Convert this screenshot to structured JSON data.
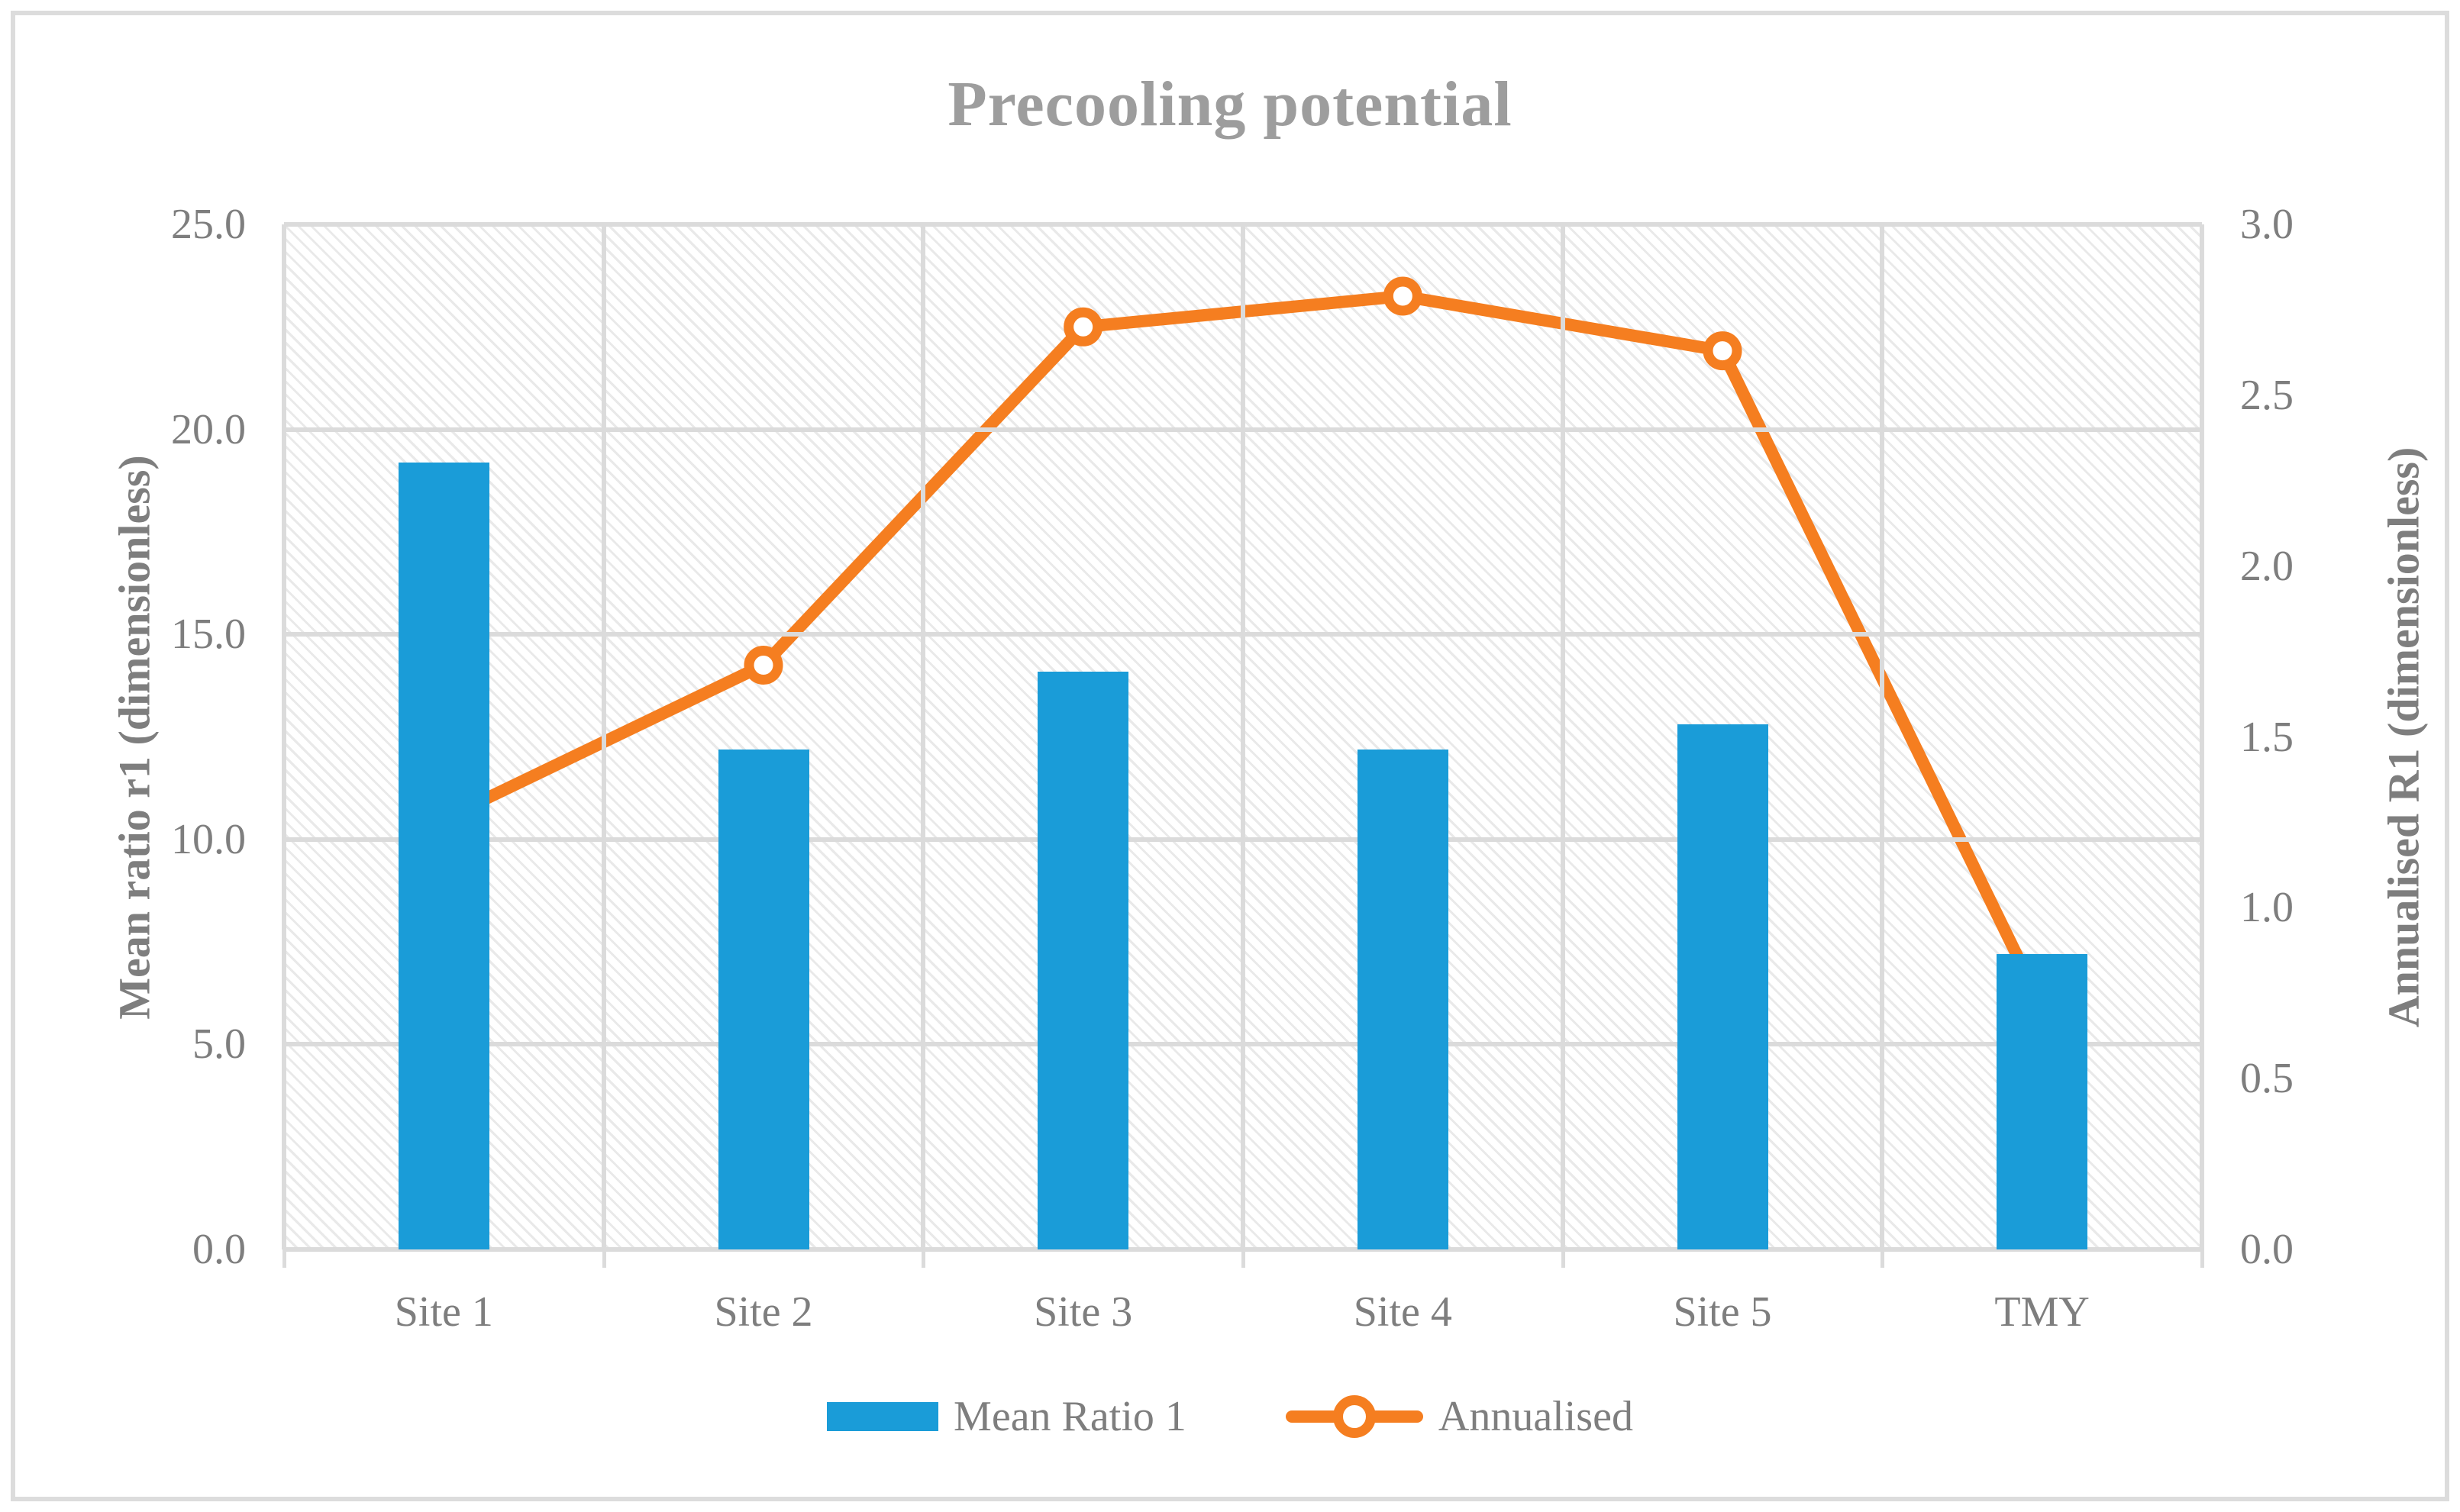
{
  "title": "Precooling potential",
  "chart_data": {
    "type": "bar",
    "subtype": "combo-bar-line-dual-axis",
    "categories": [
      "Site 1",
      "Site 2",
      "Site 3",
      "Site 4",
      "Site 5",
      "TMY"
    ],
    "series": [
      {
        "name": "Mean Ratio 1",
        "type": "bar",
        "axis": "left",
        "color": "#1a9cd8",
        "values": [
          19.2,
          12.2,
          14.1,
          12.2,
          12.8,
          7.2
        ]
      },
      {
        "name": "Annualised",
        "type": "line",
        "axis": "right",
        "color": "#f57e20",
        "marker": "open-circle",
        "values": [
          1.26,
          1.71,
          2.7,
          2.79,
          2.63,
          0.71
        ]
      }
    ],
    "left_axis": {
      "label": "Mean ratio r1 (dimensionless)",
      "min": 0,
      "max": 25,
      "tick_step": 5,
      "ticks": [
        "25.0",
        "20.0",
        "15.0",
        "10.0",
        "5.0",
        "0.0"
      ]
    },
    "right_axis": {
      "label": "Annualised R1 (dimensionless)",
      "min": 0,
      "max": 3,
      "tick_step": 0.5,
      "ticks": [
        "3.0",
        "2.5",
        "2.0",
        "1.5",
        "1.0",
        "0.5",
        "0.0"
      ]
    },
    "grid": true,
    "plot_fill": "diagonal-hatch",
    "legend_position": "bottom"
  },
  "legend": {
    "bar_label": "Mean Ratio 1",
    "line_label": "Annualised"
  },
  "colors": {
    "bar": "#1a9cd8",
    "line": "#f57e20",
    "gridline": "#dbdbdb",
    "axis_text": "#7e7e7e",
    "title_text": "#9d9d9d",
    "frame_border": "#dcdcdc"
  }
}
